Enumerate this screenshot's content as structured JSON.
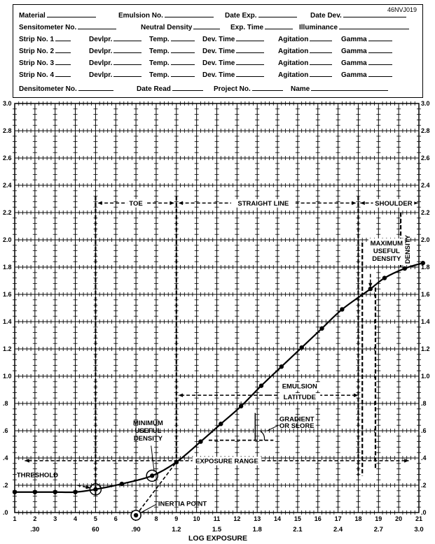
{
  "form": {
    "code": "46NVJ019",
    "row1": [
      "Material",
      "Emulsion No.",
      "Date Exp.",
      "Date Dev."
    ],
    "row2": [
      "Sensitometer No.",
      "Neutral Density",
      "Exp. Time",
      "Illuminance"
    ],
    "strips": [
      {
        "label": "Strip No. 1"
      },
      {
        "label": "Strip No. 2"
      },
      {
        "label": "Strip No. 3"
      },
      {
        "label": "Strip No. 4"
      }
    ],
    "strip_fields": [
      "Devlpr.",
      "Temp.",
      "Dev. Time",
      "Agitation",
      "Gamma"
    ],
    "row7": [
      "Densitometer No.",
      "Date Read",
      "Project No.",
      "Name"
    ]
  },
  "chart_data": {
    "type": "line",
    "title": "",
    "xlabel": "LOG EXPOSURE",
    "ylabel": "",
    "step_ticks": [
      "1",
      "2",
      "3",
      "4",
      "5",
      "6",
      "7",
      "8",
      "9",
      "10",
      "11",
      "12",
      "13",
      "14",
      "15",
      "16",
      "17",
      "18",
      "19",
      "20",
      "21"
    ],
    "log_ticks": [
      {
        "step": 2,
        "label": ".30"
      },
      {
        "step": 5,
        "label": "60"
      },
      {
        "step": 7,
        "label": ".90"
      },
      {
        "step": 9,
        "label": "1.2"
      },
      {
        "step": 11,
        "label": "1.5"
      },
      {
        "step": 13,
        "label": "1.8"
      },
      {
        "step": 15,
        "label": "2.1"
      },
      {
        "step": 17,
        "label": "2.4"
      },
      {
        "step": 19,
        "label": "2.7"
      },
      {
        "step": 21,
        "label": "3.0"
      }
    ],
    "y_ticks": [
      ".0",
      ".2",
      ".4",
      ".6",
      ".8",
      "1.0",
      "1.2",
      "1.4",
      "1.6",
      "1.8",
      "2.0",
      "2.2",
      "2.4",
      "2.6",
      "2.8",
      "3.0"
    ],
    "xlim": [
      1,
      21
    ],
    "ylim": [
      0,
      3.0
    ],
    "grid": true,
    "series": [
      {
        "points": [
          {
            "x": 1,
            "y": 0.15
          },
          {
            "x": 2,
            "y": 0.15
          },
          {
            "x": 3,
            "y": 0.15
          },
          {
            "x": 4,
            "y": 0.15
          },
          {
            "x": 5,
            "y": 0.17
          },
          {
            "x": 6.3,
            "y": 0.21
          },
          {
            "x": 7.8,
            "y": 0.27
          },
          {
            "x": 9,
            "y": 0.37
          },
          {
            "x": 10.2,
            "y": 0.52
          },
          {
            "x": 11.2,
            "y": 0.65
          },
          {
            "x": 12.2,
            "y": 0.78
          },
          {
            "x": 13.2,
            "y": 0.93
          },
          {
            "x": 14.2,
            "y": 1.07
          },
          {
            "x": 15.2,
            "y": 1.21
          },
          {
            "x": 16.2,
            "y": 1.35
          },
          {
            "x": 17.2,
            "y": 1.49
          },
          {
            "x": 18.6,
            "y": 1.64
          },
          {
            "x": 19.3,
            "y": 1.72
          },
          {
            "x": 20.3,
            "y": 1.79
          },
          {
            "x": 21.2,
            "y": 1.83
          }
        ]
      }
    ],
    "inertia_point": {
      "x": 7.0,
      "y": -0.02
    },
    "regions": {
      "toe": "TOE",
      "straight": "STRAIGHT LINE",
      "shoulder": "SHOULDER"
    },
    "annotations": {
      "threshold": "THRESHOLD",
      "inertia": "INERTIA POINT",
      "min_useful": [
        "MINIMUM",
        "USEFUL",
        "DENSITY"
      ],
      "max_useful": [
        "MAXIMUM",
        "USEFUL",
        "DENSITY"
      ],
      "density": "DENSITY",
      "latitude": [
        "EMULSION",
        "LATITUDE"
      ],
      "gradient": [
        "GRADIENT",
        "OR SLORE"
      ],
      "exposure_range": "EXPOSURE RANGE"
    }
  }
}
